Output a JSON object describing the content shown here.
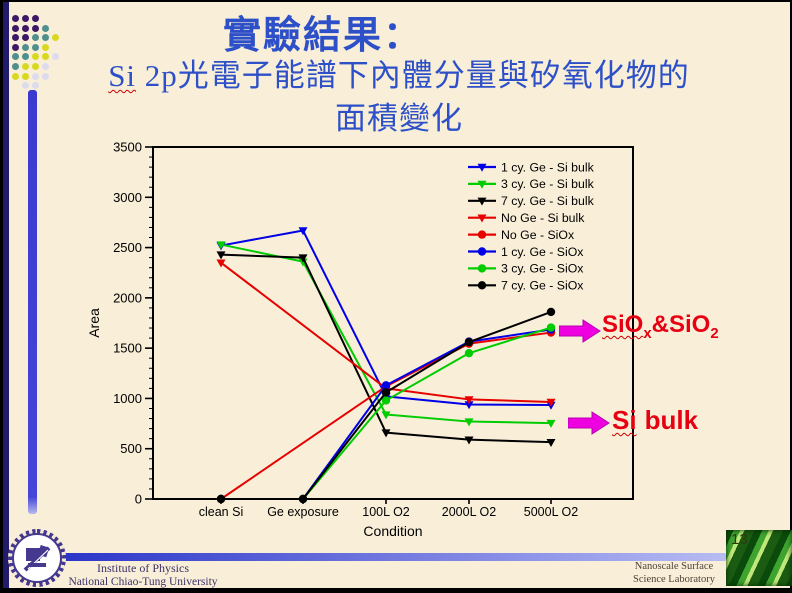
{
  "slide": {
    "title": "實驗結果：",
    "subtitle_prefix": "Si",
    "subtitle_line1_rest": " 2p光電子能譜下內體分量與矽氧化物的",
    "subtitle_line2": "面積變化"
  },
  "chart_data": {
    "type": "line",
    "categories": [
      "clean Si",
      "Ge exposure",
      "100L O2",
      "2000L O2",
      "5000L O2"
    ],
    "xlabel": "Condition",
    "ylabel": "Area",
    "ylim": [
      0,
      3500
    ],
    "ytick_step": 500,
    "ytick_minor": 100,
    "grid": false,
    "legend_position": "top-right-inside",
    "series": [
      {
        "name": "1 cy. Ge - Si  bulk",
        "color": "#0000e6",
        "marker": "triangle-down",
        "values": [
          2520,
          2670,
          1020,
          940,
          935
        ]
      },
      {
        "name": "3 cy. Ge - Si  bulk",
        "color": "#00cc00",
        "marker": "triangle-down",
        "values": [
          2530,
          2360,
          840,
          770,
          755
        ]
      },
      {
        "name": "7 cy. Ge - Si  bulk",
        "color": "#000000",
        "marker": "triangle-down",
        "values": [
          2430,
          2400,
          660,
          590,
          565
        ]
      },
      {
        "name": "No Ge - Si  bulk",
        "color": "#e60000",
        "marker": "triangle-down",
        "values": [
          2350,
          null,
          1100,
          990,
          965
        ]
      },
      {
        "name": "No Ge - SiOx",
        "color": "#e60000",
        "marker": "circle",
        "values": [
          0,
          null,
          1120,
          1545,
          1655
        ]
      },
      {
        "name": "1 cy. Ge - SiOx",
        "color": "#0000e6",
        "marker": "circle",
        "values": [
          0,
          0,
          1130,
          1565,
          1685
        ]
      },
      {
        "name": "3 cy. Ge - SiOx",
        "color": "#00cc00",
        "marker": "circle",
        "values": [
          0,
          0,
          980,
          1450,
          1705
        ]
      },
      {
        "name": "7 cy. Ge - SiOx",
        "color": "#000000",
        "marker": "circle",
        "values": [
          0,
          0,
          1060,
          1560,
          1860
        ]
      }
    ]
  },
  "annotations": {
    "arrow_color": "#ee00e0",
    "arrow_stroke": "#b500ab",
    "text_color": "#e60012",
    "sio": {
      "p1": "SiO",
      "sub1": "x",
      "p2": "&SiO",
      "sub2": "2"
    },
    "si_bulk": {
      "word1": "Si",
      "word2": "bulk"
    }
  },
  "footer": {
    "left_line1": "Institute of Physics",
    "left_line2": "National Chiao-Tung University",
    "right_line1": "Nanoscale Surface",
    "right_line2": "Science Laboratory",
    "page_number": "13"
  },
  "decoration": {
    "dot_grid": [
      "PPP..",
      "PPPT.",
      "PPTTY",
      "PTTY.",
      "TTYYL",
      "TYYL.",
      "YYLL.",
      ".LL.."
    ],
    "dot_colors": {
      "P": "#3d1866",
      "T": "#4f8f8c",
      "Y": "#d8d81e",
      "L": "#dcdcee"
    }
  },
  "colors": {
    "background": "#f9efd9",
    "title_blue": "#2d50c8",
    "footer_bar_left": "#2a35c8",
    "footer_bar_right": "#b8bcf2",
    "left_navy_bar": "#221a6a",
    "vertical_blue_bar": "#4545d8"
  }
}
